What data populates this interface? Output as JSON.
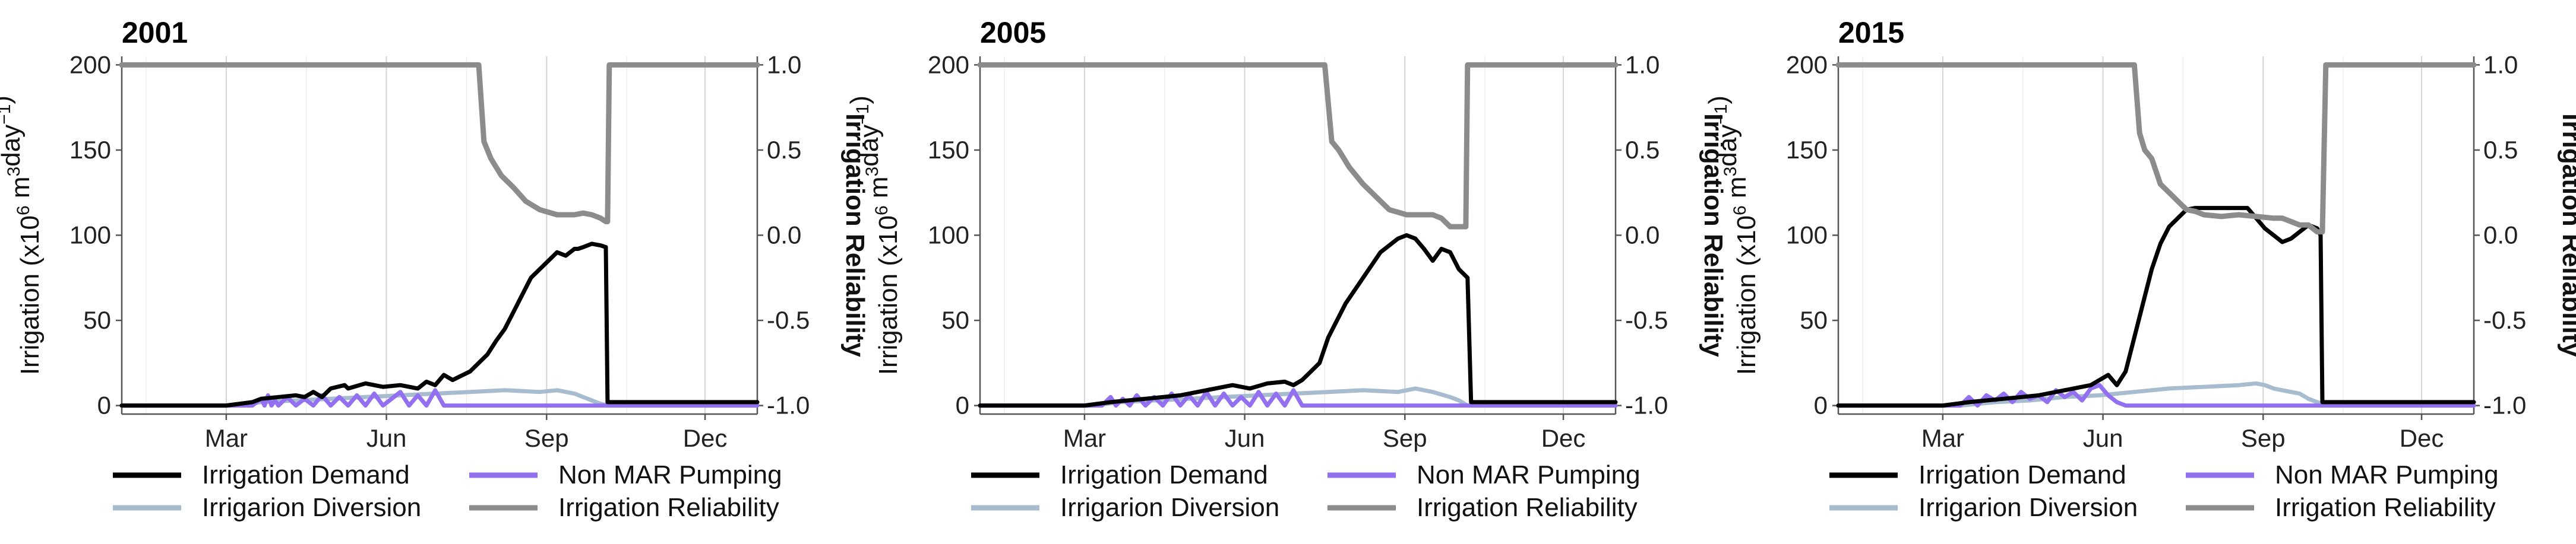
{
  "chart_data": [
    {
      "type": "line",
      "title": "2001",
      "xlabel": "",
      "ylabel": "Irrigation (x10^6 m^3 day^-1)",
      "y2label": "Irrigation Reliability",
      "xlim": [
        0,
        365
      ],
      "ylim": [
        -5,
        205
      ],
      "y2lim": [
        -1.05,
        1.05
      ],
      "x_ticks": [
        {
          "label": "Mar",
          "day": 60
        },
        {
          "label": "Jun",
          "day": 152
        },
        {
          "label": "Sep",
          "day": 244
        },
        {
          "label": "Dec",
          "day": 335
        }
      ],
      "y_ticks": [
        "0",
        "50",
        "100",
        "150",
        "200"
      ],
      "y2_ticks": [
        "-1.0",
        "-0.5",
        "0.0",
        "0.5",
        "1.0"
      ],
      "series": [
        {
          "name": "Irrigation Demand",
          "axis": "left",
          "color": "#000000",
          "x": [
            0,
            60,
            75,
            80,
            90,
            100,
            105,
            110,
            115,
            120,
            128,
            130,
            140,
            150,
            160,
            170,
            175,
            180,
            185,
            190,
            200,
            210,
            215,
            220,
            225,
            230,
            235,
            240,
            245,
            250,
            255,
            260,
            262,
            265,
            270,
            275,
            278,
            279,
            365
          ],
          "y": [
            0,
            0,
            2,
            4,
            5,
            6,
            5,
            8,
            5,
            10,
            12,
            10,
            13,
            11,
            12,
            10,
            14,
            12,
            18,
            15,
            20,
            30,
            38,
            45,
            55,
            65,
            75,
            80,
            85,
            90,
            88,
            92,
            92,
            93,
            95,
            94,
            93,
            2,
            2
          ]
        },
        {
          "name": "Irrigarion Diversion",
          "axis": "left",
          "color": "#a8bccf",
          "x": [
            0,
            65,
            80,
            100,
            120,
            140,
            160,
            180,
            200,
            220,
            240,
            250,
            260,
            265,
            270,
            275,
            280,
            365
          ],
          "y": [
            0,
            0,
            2,
            3,
            4,
            5,
            6,
            7,
            8,
            9,
            8,
            9,
            7,
            5,
            3,
            1,
            0,
            0
          ]
        },
        {
          "name": "Non MAR Pumping",
          "axis": "left",
          "color": "#9370f0",
          "x": [
            0,
            75,
            80,
            82,
            84,
            86,
            88,
            90,
            95,
            100,
            105,
            110,
            115,
            120,
            125,
            130,
            135,
            140,
            145,
            150,
            155,
            160,
            165,
            170,
            175,
            180,
            185,
            190,
            365
          ],
          "y": [
            0,
            0,
            4,
            0,
            6,
            0,
            3,
            0,
            5,
            0,
            4,
            0,
            6,
            0,
            5,
            0,
            6,
            0,
            7,
            0,
            4,
            8,
            0,
            6,
            0,
            9,
            0,
            0,
            0
          ]
        },
        {
          "name": "Irrigation Reliability",
          "axis": "right",
          "color": "#8c8c8c",
          "x": [
            0,
            205,
            208,
            212,
            218,
            225,
            232,
            240,
            250,
            260,
            265,
            270,
            275,
            278,
            279,
            280,
            365
          ],
          "y": [
            1.0,
            1.0,
            0.55,
            0.45,
            0.35,
            0.28,
            0.2,
            0.15,
            0.12,
            0.12,
            0.13,
            0.12,
            0.1,
            0.08,
            0.08,
            1.0,
            1.0
          ]
        }
      ]
    },
    {
      "type": "line",
      "title": "2005",
      "xlabel": "",
      "ylabel": "Irrigation (x10^6 m^3 day^-1)",
      "y2label": "Irrigation Reliability",
      "xlim": [
        0,
        365
      ],
      "ylim": [
        -5,
        205
      ],
      "y2lim": [
        -1.05,
        1.05
      ],
      "x_ticks": [
        {
          "label": "Mar",
          "day": 60
        },
        {
          "label": "Jun",
          "day": 152
        },
        {
          "label": "Sep",
          "day": 244
        },
        {
          "label": "Dec",
          "day": 335
        }
      ],
      "y_ticks": [
        "0",
        "50",
        "100",
        "150",
        "200"
      ],
      "y2_ticks": [
        "-1.0",
        "-0.5",
        "0.0",
        "0.5",
        "1.0"
      ],
      "series": [
        {
          "name": "Irrigation Demand",
          "axis": "left",
          "color": "#000000",
          "x": [
            0,
            60,
            75,
            85,
            95,
            105,
            115,
            125,
            135,
            145,
            155,
            165,
            175,
            180,
            185,
            190,
            195,
            200,
            210,
            220,
            230,
            240,
            245,
            250,
            255,
            260,
            265,
            270,
            275,
            280,
            282,
            365
          ],
          "y": [
            0,
            0,
            2,
            3,
            4,
            5,
            6,
            8,
            10,
            12,
            10,
            13,
            14,
            12,
            15,
            20,
            25,
            40,
            60,
            75,
            90,
            98,
            100,
            98,
            92,
            85,
            92,
            90,
            80,
            75,
            2,
            2
          ]
        },
        {
          "name": "Irrigarion Diversion",
          "axis": "left",
          "color": "#a8bccf",
          "x": [
            0,
            65,
            80,
            100,
            120,
            140,
            160,
            180,
            200,
            220,
            240,
            250,
            260,
            270,
            275,
            280,
            365
          ],
          "y": [
            0,
            0,
            2,
            3,
            4,
            5,
            6,
            7,
            8,
            9,
            8,
            10,
            8,
            5,
            3,
            0,
            0
          ]
        },
        {
          "name": "Non MAR Pumping",
          "axis": "left",
          "color": "#9370f0",
          "x": [
            0,
            70,
            75,
            78,
            82,
            86,
            90,
            95,
            100,
            105,
            110,
            115,
            120,
            125,
            130,
            135,
            140,
            145,
            150,
            155,
            160,
            165,
            170,
            175,
            180,
            185,
            365
          ],
          "y": [
            0,
            0,
            5,
            0,
            4,
            0,
            6,
            0,
            5,
            0,
            7,
            0,
            6,
            0,
            8,
            0,
            7,
            0,
            5,
            0,
            8,
            0,
            7,
            0,
            9,
            0,
            0
          ]
        },
        {
          "name": "Irrigation Reliability",
          "axis": "right",
          "color": "#8c8c8c",
          "x": [
            0,
            198,
            202,
            206,
            212,
            220,
            228,
            235,
            245,
            255,
            260,
            265,
            270,
            275,
            279,
            280,
            365
          ],
          "y": [
            1.0,
            1.0,
            0.55,
            0.5,
            0.4,
            0.3,
            0.22,
            0.15,
            0.12,
            0.12,
            0.12,
            0.1,
            0.05,
            0.05,
            0.05,
            1.0,
            1.0
          ]
        }
      ]
    },
    {
      "type": "line",
      "title": "2015",
      "xlabel": "",
      "ylabel": "Irrigation (x10^6 m^3 day^-1)",
      "y2label": "Irrigation Reliability",
      "xlim": [
        0,
        365
      ],
      "ylim": [
        -5,
        205
      ],
      "y2lim": [
        -1.05,
        1.05
      ],
      "x_ticks": [
        {
          "label": "Mar",
          "day": 60
        },
        {
          "label": "Jun",
          "day": 152
        },
        {
          "label": "Sep",
          "day": 244
        },
        {
          "label": "Dec",
          "day": 335
        }
      ],
      "y_ticks": [
        "0",
        "50",
        "100",
        "150",
        "200"
      ],
      "y2_ticks": [
        "-1.0",
        "-0.5",
        "0.0",
        "0.5",
        "1.0"
      ],
      "series": [
        {
          "name": "Irrigation Demand",
          "axis": "left",
          "color": "#000000",
          "x": [
            0,
            60,
            75,
            85,
            95,
            105,
            115,
            125,
            135,
            145,
            150,
            155,
            160,
            165,
            170,
            175,
            180,
            185,
            190,
            195,
            200,
            205,
            210,
            215,
            225,
            235,
            240,
            245,
            250,
            255,
            260,
            265,
            270,
            275,
            277,
            278,
            365
          ],
          "y": [
            0,
            0,
            2,
            3,
            4,
            5,
            6,
            8,
            10,
            12,
            15,
            18,
            12,
            20,
            40,
            60,
            80,
            95,
            105,
            110,
            115,
            116,
            116,
            116,
            116,
            116,
            110,
            104,
            100,
            96,
            98,
            102,
            106,
            104,
            100,
            2,
            2
          ]
        },
        {
          "name": "Irrigarion Diversion",
          "axis": "left",
          "color": "#a8bccf",
          "x": [
            0,
            70,
            90,
            110,
            130,
            150,
            170,
            190,
            210,
            230,
            240,
            245,
            250,
            260,
            265,
            270,
            275,
            280,
            365
          ],
          "y": [
            0,
            0,
            2,
            3,
            5,
            6,
            8,
            10,
            11,
            12,
            13,
            12,
            10,
            8,
            7,
            4,
            2,
            0,
            0
          ]
        },
        {
          "name": "Non MAR Pumping",
          "axis": "left",
          "color": "#9370f0",
          "x": [
            0,
            70,
            75,
            80,
            85,
            90,
            95,
            100,
            105,
            110,
            115,
            120,
            125,
            130,
            135,
            140,
            145,
            150,
            155,
            160,
            165,
            365
          ],
          "y": [
            0,
            0,
            5,
            0,
            6,
            3,
            7,
            2,
            8,
            4,
            6,
            2,
            9,
            5,
            8,
            3,
            10,
            12,
            6,
            2,
            0,
            0
          ]
        },
        {
          "name": "Irrigation Reliability",
          "axis": "right",
          "color": "#8c8c8c",
          "x": [
            0,
            170,
            173,
            176,
            180,
            185,
            190,
            195,
            200,
            205,
            210,
            220,
            230,
            240,
            250,
            255,
            260,
            265,
            270,
            275,
            278,
            280,
            365
          ],
          "y": [
            1.0,
            1.0,
            0.6,
            0.5,
            0.45,
            0.3,
            0.25,
            0.2,
            0.15,
            0.14,
            0.12,
            0.11,
            0.12,
            0.11,
            0.1,
            0.1,
            0.08,
            0.06,
            0.06,
            0.02,
            0.02,
            1.0,
            1.0
          ]
        }
      ]
    }
  ]
}
